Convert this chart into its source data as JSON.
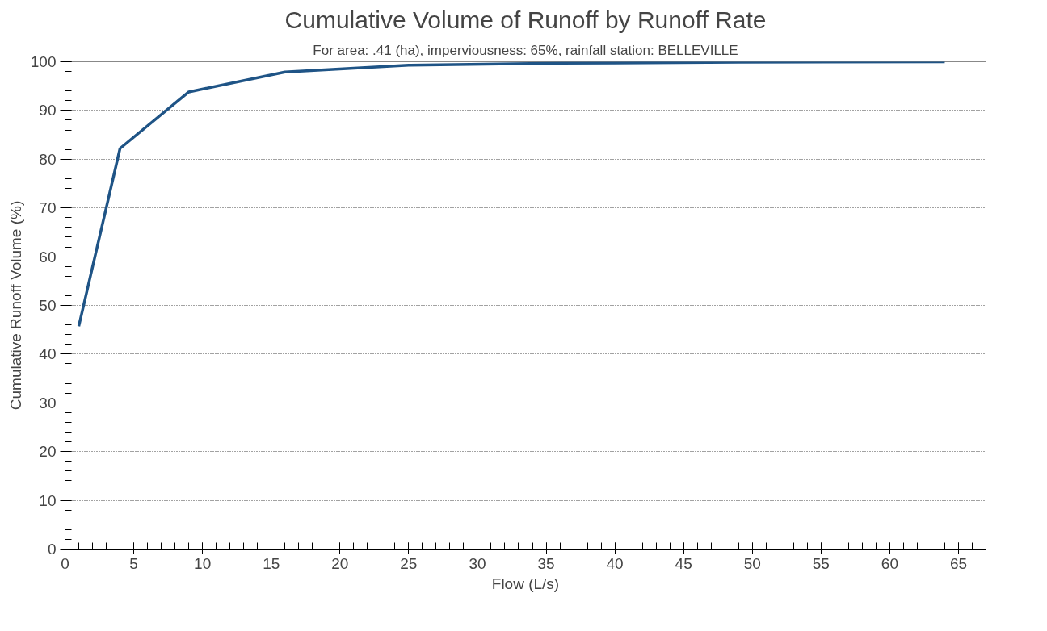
{
  "chart_data": {
    "type": "line",
    "title": "Cumulative Volume of Runoff by Runoff Rate",
    "subtitle": "For area: .41 (ha), imperviousness: 65%, rainfall station: BELLEVILLE",
    "xlabel": "Flow (L/s)",
    "ylabel": "Cumulative Runoff Volume (%)",
    "x": [
      1,
      4,
      9,
      16,
      25,
      36,
      49,
      64
    ],
    "series": [
      {
        "color": "#1f5486",
        "values": [
          45.7,
          82.2,
          93.8,
          97.9,
          99.3,
          99.7,
          99.9,
          100
        ]
      }
    ],
    "xlim": [
      0,
      67
    ],
    "xticks": [
      0,
      5,
      10,
      15,
      20,
      25,
      30,
      35,
      40,
      45,
      50,
      55,
      60,
      65
    ],
    "ylim": [
      0,
      100
    ],
    "yticks": [
      0,
      10,
      20,
      30,
      40,
      50,
      60,
      70,
      80,
      90,
      100
    ],
    "grid": "y",
    "marker": "none",
    "line_style": "solid"
  }
}
